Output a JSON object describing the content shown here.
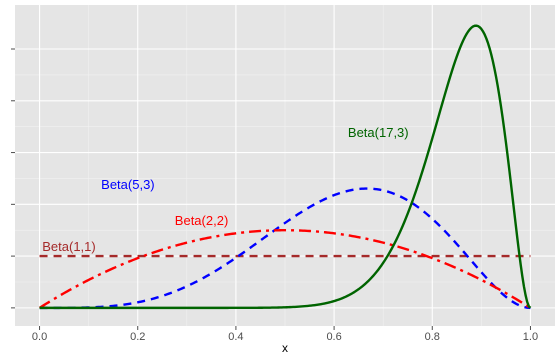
{
  "chart_data": {
    "type": "line",
    "title": "",
    "xlabel": "x",
    "ylabel": "",
    "xlim": [
      -0.05,
      1.05
    ],
    "ylim": [
      -0.35,
      5.85
    ],
    "x_ticks": [
      0.0,
      0.2,
      0.4,
      0.6,
      0.8,
      1.0
    ],
    "x_tick_labels": [
      "0.0",
      "0.2",
      "0.4",
      "0.6",
      "0.8",
      "1.0"
    ],
    "y_ticks": [
      0,
      1,
      2,
      3,
      4,
      5
    ],
    "y_tick_labels_visible": false,
    "grid": true,
    "legend": "none",
    "background": "#e5e5e5",
    "series": [
      {
        "name": "Beta(1,1)",
        "alpha": 1,
        "beta": 1,
        "color": "#a52a2a",
        "dash": "dashed"
      },
      {
        "name": "Beta(5,3)",
        "alpha": 5,
        "beta": 3,
        "color": "#0000ff",
        "dash": "dashed"
      },
      {
        "name": "Beta(2,2)",
        "alpha": 2,
        "beta": 2,
        "color": "#ff0000",
        "dash": "dashdot"
      },
      {
        "name": "Beta(17,3)",
        "alpha": 17,
        "beta": 3,
        "color": "#006400",
        "dash": "solid"
      }
    ],
    "annotations": [
      {
        "text": "Beta(1,1)",
        "x": 0.06,
        "y": 1.1,
        "color": "#a52a2a"
      },
      {
        "text": "Beta(5,3)",
        "x": 0.18,
        "y": 2.3,
        "color": "#0000ff"
      },
      {
        "text": "Beta(2,2)",
        "x": 0.33,
        "y": 1.6,
        "color": "#ff0000"
      },
      {
        "text": "Beta(17,3)",
        "x": 0.69,
        "y": 3.3,
        "color": "#006400"
      }
    ]
  }
}
